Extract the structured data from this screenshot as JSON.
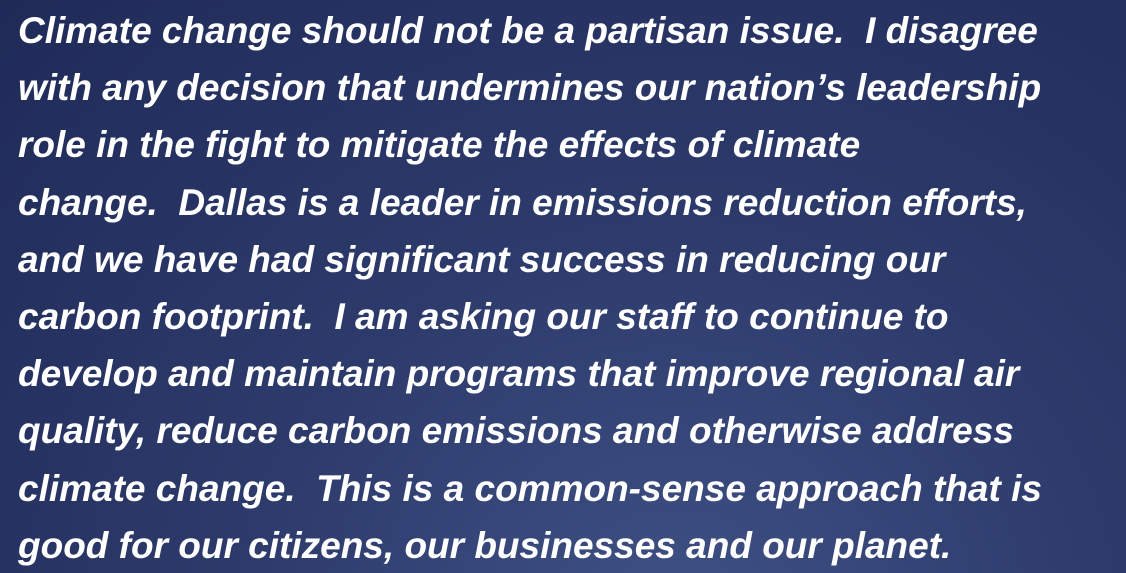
{
  "text": {
    "lines": [
      "Climate change should not be a partisan issue.  I disagree",
      "with any decision that undermines our nation’s leadership",
      "role in the fight to mitigate the effects of climate",
      "change.  Dallas is a leader in emissions reduction efforts,",
      "and we have had significant success in reducing our",
      "carbon footprint.  I am asking our staff to continue to",
      "develop and maintain programs that improve regional air",
      "quality, reduce carbon emissions and otherwise address",
      "climate change.  This is a common-sense approach that is",
      "good for our citizens, our businesses and our planet."
    ]
  }
}
